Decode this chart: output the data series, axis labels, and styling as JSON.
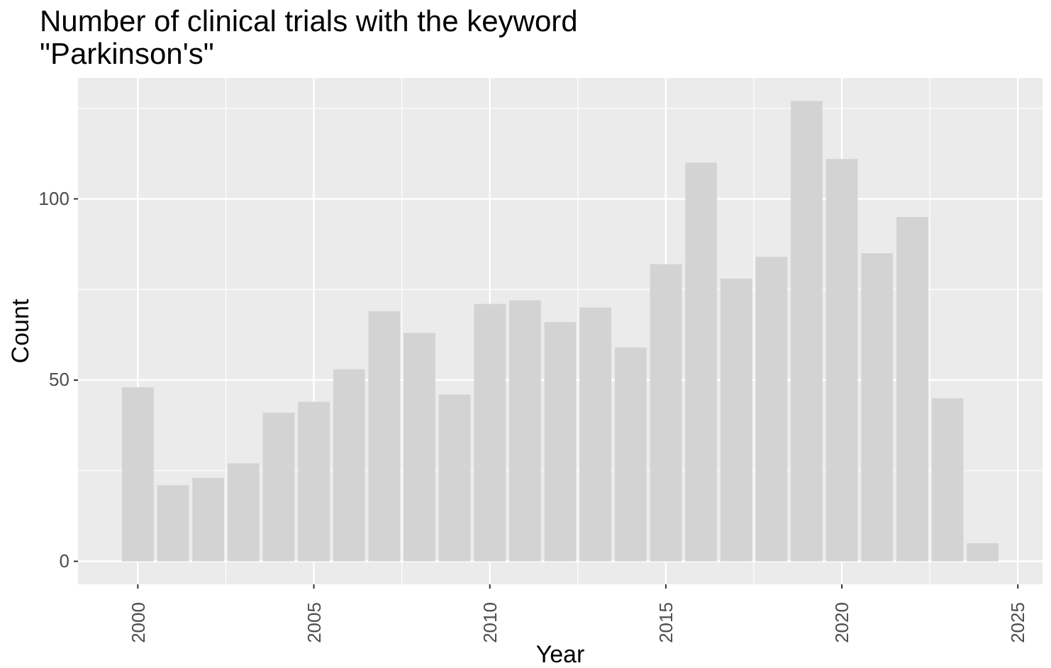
{
  "chart_data": {
    "type": "bar",
    "title": "Number of clinical trials with the keyword\n\"Parkinson's\"",
    "xlabel": "Year",
    "ylabel": "Count",
    "x": [
      2000,
      2001,
      2002,
      2003,
      2004,
      2005,
      2006,
      2007,
      2008,
      2009,
      2010,
      2011,
      2012,
      2013,
      2014,
      2015,
      2016,
      2017,
      2018,
      2019,
      2020,
      2021,
      2022,
      2023,
      2024
    ],
    "values": [
      48,
      21,
      23,
      27,
      41,
      44,
      53,
      69,
      63,
      46,
      71,
      72,
      66,
      70,
      59,
      82,
      110,
      78,
      84,
      127,
      111,
      85,
      95,
      45,
      5
    ],
    "color": "#d3d3d3",
    "xlim": [
      1998.3,
      2025.7
    ],
    "xticks": [
      2000,
      2005,
      2010,
      2015,
      2020,
      2025
    ],
    "ylim": [
      -6.35,
      133.35
    ],
    "yticks": [
      0,
      50,
      100
    ],
    "grid": true
  }
}
